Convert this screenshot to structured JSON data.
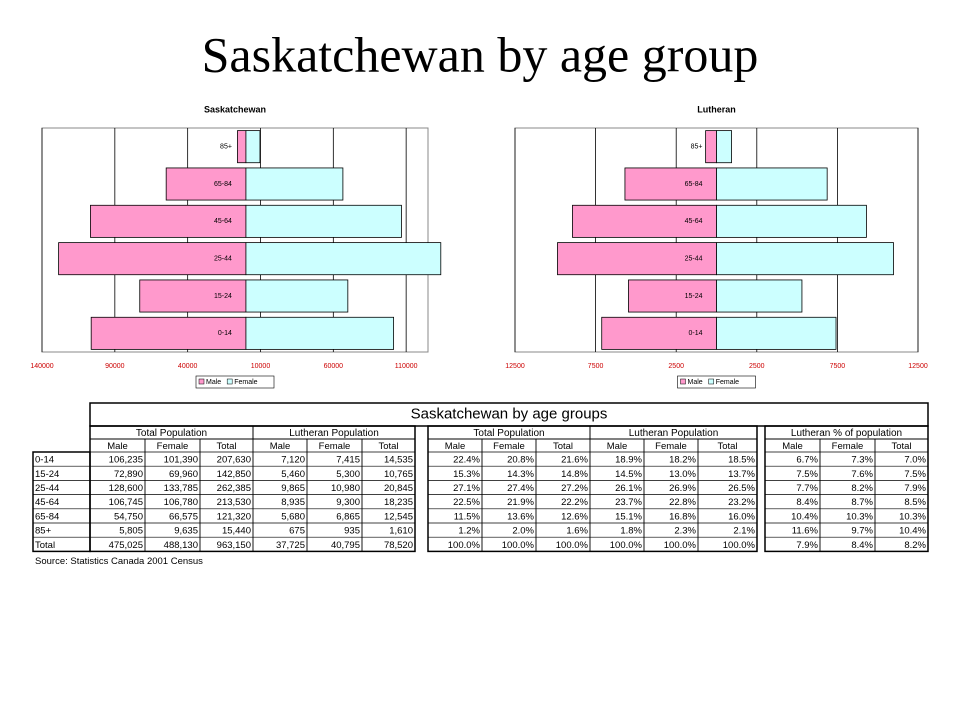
{
  "title": "Saskatchewan by age group",
  "chart_data": [
    {
      "type": "bar",
      "orientation": "horizontal",
      "title": "Saskatchewan",
      "categories": [
        "0-14",
        "15-24",
        "25-44",
        "45-64",
        "65-84",
        "85+"
      ],
      "series": [
        {
          "name": "Male",
          "color": "#ff99cc",
          "side": "left",
          "values": [
            106235,
            72890,
            128600,
            106745,
            54750,
            5805
          ]
        },
        {
          "name": "Female",
          "color": "#ccffff",
          "side": "right",
          "values": [
            101390,
            69960,
            133785,
            106780,
            66575,
            9635
          ]
        }
      ],
      "xlim": [
        -140000,
        125000
      ],
      "xticks": [
        {
          "value": -140000,
          "label": "140000"
        },
        {
          "value": -90000,
          "label": "90000"
        },
        {
          "value": -40000,
          "label": "40000"
        },
        10000,
        60000,
        110000
      ],
      "grid": true,
      "legend": "bottom"
    },
    {
      "type": "bar",
      "orientation": "horizontal",
      "title": "Lutheran",
      "categories": [
        "0-14",
        "15-24",
        "25-44",
        "45-64",
        "65-84",
        "85+"
      ],
      "series": [
        {
          "name": "Male",
          "color": "#ff99cc",
          "side": "left",
          "values": [
            7120,
            5460,
            9865,
            8935,
            5680,
            675
          ]
        },
        {
          "name": "Female",
          "color": "#ccffff",
          "side": "right",
          "values": [
            7415,
            5300,
            10980,
            9300,
            6865,
            935
          ]
        }
      ],
      "xlim": [
        -12500,
        12500
      ],
      "xticks": [
        {
          "value": -12500,
          "label": "12500"
        },
        {
          "value": -7500,
          "label": "7500"
        },
        {
          "value": -2500,
          "label": "2500"
        },
        2500,
        7500,
        12500
      ],
      "grid": true,
      "legend": "bottom"
    }
  ],
  "table": {
    "title": "Saskatchewan by age groups",
    "groups": [
      "Total Population",
      "Lutheran Population",
      "Total Population",
      "Lutheran Population",
      "Lutheran % of population"
    ],
    "columns": [
      "Male",
      "Female",
      "Total",
      "Male",
      "Female",
      "Total",
      "Male",
      "Female",
      "Total",
      "Male",
      "Female",
      "Total",
      "Male",
      "Female",
      "Total"
    ],
    "rows": [
      [
        "0-14",
        "106,235",
        "101,390",
        "207,630",
        "7,120",
        "7,415",
        "14,535",
        "22.4%",
        "20.8%",
        "21.6%",
        "18.9%",
        "18.2%",
        "18.5%",
        "6.7%",
        "7.3%",
        "7.0%"
      ],
      [
        "15-24",
        "72,890",
        "69,960",
        "142,850",
        "5,460",
        "5,300",
        "10,765",
        "15.3%",
        "14.3%",
        "14.8%",
        "14.5%",
        "13.0%",
        "13.7%",
        "7.5%",
        "7.6%",
        "7.5%"
      ],
      [
        "25-44",
        "128,600",
        "133,785",
        "262,385",
        "9,865",
        "10,980",
        "20,845",
        "27.1%",
        "27.4%",
        "27.2%",
        "26.1%",
        "26.9%",
        "26.5%",
        "7.7%",
        "8.2%",
        "7.9%"
      ],
      [
        "45-64",
        "106,745",
        "106,780",
        "213,530",
        "8,935",
        "9,300",
        "18,235",
        "22.5%",
        "21.9%",
        "22.2%",
        "23.7%",
        "22.8%",
        "23.2%",
        "8.4%",
        "8.7%",
        "8.5%"
      ],
      [
        "65-84",
        "54,750",
        "66,575",
        "121,320",
        "5,680",
        "6,865",
        "12,545",
        "11.5%",
        "13.6%",
        "12.6%",
        "15.1%",
        "16.8%",
        "16.0%",
        "10.4%",
        "10.3%",
        "10.3%"
      ],
      [
        "85+",
        "5,805",
        "9,635",
        "15,440",
        "675",
        "935",
        "1,610",
        "1.2%",
        "2.0%",
        "1.6%",
        "1.8%",
        "2.3%",
        "2.1%",
        "11.6%",
        "9.7%",
        "10.4%"
      ],
      [
        "Total",
        "475,025",
        "488,130",
        "963,150",
        "37,725",
        "40,795",
        "78,520",
        "100.0%",
        "100.0%",
        "100.0%",
        "100.0%",
        "100.0%",
        "100.0%",
        "7.9%",
        "8.4%",
        "8.2%"
      ]
    ],
    "source": "Source: Statistics Canada 2001 Census"
  }
}
